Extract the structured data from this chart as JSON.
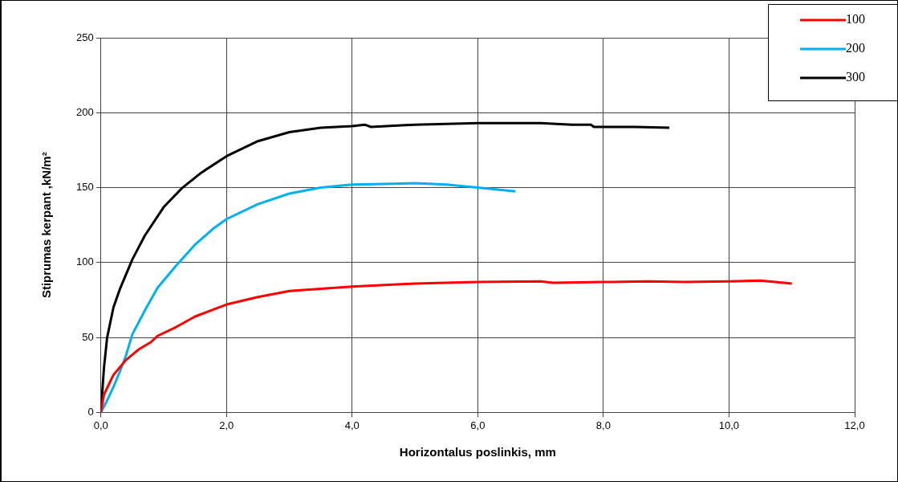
{
  "chart_data": {
    "type": "line",
    "xlabel": "Horizontalus poslinkis, mm",
    "ylabel": "Stiprumas kerpant ,kN/m²",
    "xlim": [
      0,
      12
    ],
    "xticks": [
      {
        "value": 0,
        "label": "0,0"
      },
      {
        "value": 2,
        "label": "2,0"
      },
      {
        "value": 4,
        "label": "4,0"
      },
      {
        "value": 6,
        "label": "6,0"
      },
      {
        "value": 8,
        "label": "8,0"
      },
      {
        "value": 10,
        "label": "10,0"
      },
      {
        "value": 12,
        "label": "12,0"
      }
    ],
    "ylim": [
      0,
      250
    ],
    "yticks": [
      0,
      50,
      100,
      150,
      200,
      250
    ],
    "grid": true,
    "legend": "top right",
    "marker": "none",
    "line_style": "solid",
    "series": [
      {
        "name": "100",
        "color": "#ff0000",
        "x": [
          0,
          0.05,
          0.2,
          0.4,
          0.6,
          0.8,
          0.9,
          1.2,
          1.5,
          2.0,
          2.5,
          3.0,
          4.0,
          5.0,
          6.0,
          7.0,
          7.2,
          8.0,
          8.7,
          9.3,
          10.0,
          10.5,
          11.0
        ],
        "values": [
          0,
          12,
          25,
          35,
          42,
          47,
          51,
          57,
          64,
          72,
          77,
          81,
          84,
          86,
          87,
          87.5,
          86.5,
          87,
          87.5,
          87,
          87.5,
          88,
          86
        ]
      },
      {
        "name": "200",
        "color": "#00b0f0",
        "x": [
          0,
          0.1,
          0.2,
          0.3,
          0.4,
          0.5,
          0.7,
          0.9,
          1.2,
          1.5,
          1.8,
          2.0,
          2.5,
          3.0,
          3.5,
          4.0,
          4.5,
          5.0,
          5.5,
          6.0,
          6.6
        ],
        "values": [
          0,
          8,
          17,
          27,
          38,
          52,
          68,
          83,
          98,
          112,
          123,
          129,
          139,
          146,
          150,
          152,
          152.5,
          153,
          152,
          150,
          147.5
        ]
      },
      {
        "name": "300",
        "color": "#000000",
        "x": [
          0,
          0.05,
          0.1,
          0.2,
          0.3,
          0.5,
          0.7,
          1.0,
          1.3,
          1.6,
          2.0,
          2.5,
          3.0,
          3.5,
          4.0,
          4.2,
          4.3,
          5.0,
          6.0,
          7.0,
          7.5,
          7.8,
          7.85,
          8.5,
          9.05
        ],
        "values": [
          0,
          30,
          50,
          70,
          82,
          102,
          118,
          137,
          150,
          160,
          171,
          181,
          187,
          190,
          191,
          192,
          190.5,
          192,
          193,
          193,
          192,
          192,
          190.5,
          190.5,
          190
        ]
      }
    ]
  }
}
